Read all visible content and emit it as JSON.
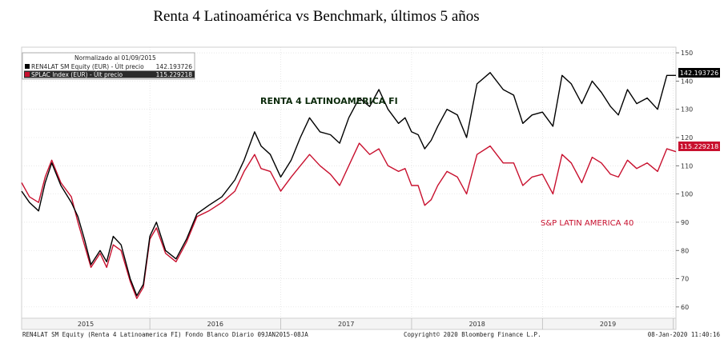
{
  "title": "Renta 4 Latinoamérica vs Benchmark, últimos 5 años",
  "legend": {
    "header": "Normalizado al 01/09/2015",
    "items": [
      {
        "label": "REN4LAT SM Equity (EUR) - Últ precio",
        "value": "142.193726",
        "color": "#000000"
      },
      {
        "label": "SPLAC Index (EUR) - Últ precio",
        "value": "115.229218",
        "color": "#c8102e"
      }
    ]
  },
  "annotations": {
    "fund": "RENTA 4 LATINOAMERICA FI",
    "index": "S&P LATIN AMERICA 40"
  },
  "last_value_tags": [
    "142.193726",
    "115.229218"
  ],
  "footer": {
    "left": "REN4LAT SM Equity (Renta 4 Latinoamerica FI) Fondo Blanco  Diario 09JAN2015-08JA",
    "center": "Copyright© 2020 Bloomberg Finance L.P.",
    "right": "08-Jan-2020 11:40:16"
  },
  "chart_data": {
    "type": "line",
    "xlabel": "",
    "ylabel": "",
    "x_ticks": [
      "2015",
      "2016",
      "2017",
      "2018",
      "2019"
    ],
    "y_ticks": [
      60,
      70,
      80,
      90,
      100,
      110,
      120,
      130,
      140,
      150
    ],
    "ylim": [
      56,
      152
    ],
    "xlim": [
      2015.02,
      2020.02
    ],
    "grid": true,
    "legend_position": "top-left",
    "series": [
      {
        "name": "REN4LAT SM Equity (EUR) - Últ precio",
        "color": "#000000",
        "x": [
          2015.02,
          2015.08,
          2015.15,
          2015.2,
          2015.25,
          2015.32,
          2015.4,
          2015.45,
          2015.5,
          2015.55,
          2015.62,
          2015.67,
          2015.72,
          2015.78,
          2015.85,
          2015.9,
          2015.95,
          2016.0,
          2016.05,
          2016.12,
          2016.2,
          2016.28,
          2016.36,
          2016.45,
          2016.55,
          2016.65,
          2016.72,
          2016.8,
          2016.85,
          2016.92,
          2017.0,
          2017.08,
          2017.15,
          2017.22,
          2017.3,
          2017.38,
          2017.45,
          2017.52,
          2017.6,
          2017.68,
          2017.75,
          2017.82,
          2017.9,
          2017.95,
          2018.0,
          2018.05,
          2018.1,
          2018.15,
          2018.2,
          2018.27,
          2018.35,
          2018.42,
          2018.5,
          2018.6,
          2018.7,
          2018.78,
          2018.85,
          2018.92,
          2019.0,
          2019.08,
          2019.15,
          2019.22,
          2019.3,
          2019.38,
          2019.45,
          2019.52,
          2019.58,
          2019.65,
          2019.72,
          2019.8,
          2019.88,
          2019.95,
          2020.02
        ],
        "y": [
          101,
          97,
          94,
          104,
          111,
          103,
          97,
          92,
          84,
          75,
          80,
          76,
          85,
          82,
          70,
          64,
          68,
          85,
          90,
          80,
          77,
          84,
          93,
          96,
          99,
          105,
          112,
          122,
          117,
          114,
          106,
          112,
          120,
          127,
          122,
          121,
          118,
          127,
          134,
          131,
          137,
          130,
          125,
          127,
          122,
          121,
          116,
          119,
          124,
          130,
          128,
          120,
          139,
          143,
          137,
          135,
          125,
          128,
          129,
          124,
          142,
          139,
          132,
          140,
          136,
          131,
          128,
          137,
          132,
          134,
          130,
          142,
          142
        ]
      },
      {
        "name": "SPLAC Index (EUR) - Últ precio",
        "color": "#c8102e",
        "x": [
          2015.02,
          2015.08,
          2015.15,
          2015.2,
          2015.25,
          2015.32,
          2015.4,
          2015.45,
          2015.5,
          2015.55,
          2015.62,
          2015.67,
          2015.72,
          2015.78,
          2015.85,
          2015.9,
          2015.95,
          2016.0,
          2016.05,
          2016.12,
          2016.2,
          2016.28,
          2016.36,
          2016.45,
          2016.55,
          2016.65,
          2016.72,
          2016.8,
          2016.85,
          2016.92,
          2017.0,
          2017.08,
          2017.15,
          2017.22,
          2017.3,
          2017.38,
          2017.45,
          2017.52,
          2017.6,
          2017.68,
          2017.75,
          2017.82,
          2017.9,
          2017.95,
          2018.0,
          2018.05,
          2018.1,
          2018.15,
          2018.2,
          2018.27,
          2018.35,
          2018.42,
          2018.5,
          2018.6,
          2018.7,
          2018.78,
          2018.85,
          2018.92,
          2019.0,
          2019.08,
          2019.15,
          2019.22,
          2019.3,
          2019.38,
          2019.45,
          2019.52,
          2019.58,
          2019.65,
          2019.72,
          2019.8,
          2019.88,
          2019.95,
          2020.02
        ],
        "y": [
          104,
          99,
          97,
          106,
          112,
          104,
          99,
          90,
          82,
          74,
          79,
          74,
          82,
          80,
          69,
          63,
          67,
          84,
          88,
          79,
          76,
          83,
          92,
          94,
          97,
          101,
          108,
          114,
          109,
          108,
          101,
          106,
          110,
          114,
          110,
          107,
          103,
          110,
          118,
          114,
          116,
          110,
          108,
          109,
          103,
          103,
          96,
          98,
          103,
          108,
          106,
          100,
          114,
          117,
          111,
          111,
          103,
          106,
          107,
          100,
          114,
          111,
          104,
          113,
          111,
          107,
          106,
          112,
          109,
          111,
          108,
          116,
          115
        ]
      }
    ]
  }
}
